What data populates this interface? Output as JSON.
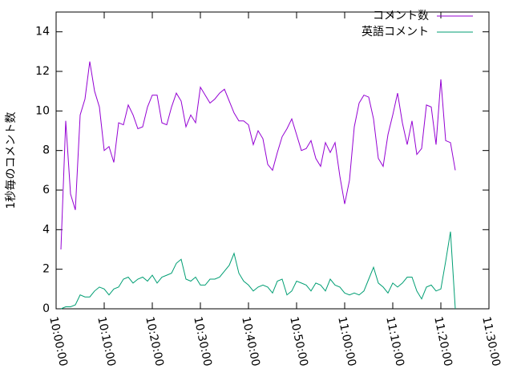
{
  "chart_data": {
    "type": "line",
    "ylabel": "1秒毎のコメント数",
    "x": [
      "10:01:00",
      "10:02:00",
      "10:03:00",
      "10:04:00",
      "10:05:00",
      "10:06:00",
      "10:07:00",
      "10:08:00",
      "10:09:00",
      "10:10:00",
      "10:11:00",
      "10:12:00",
      "10:13:00",
      "10:14:00",
      "10:15:00",
      "10:16:00",
      "10:17:00",
      "10:18:00",
      "10:19:00",
      "10:20:00",
      "10:21:00",
      "10:22:00",
      "10:23:00",
      "10:24:00",
      "10:25:00",
      "10:26:00",
      "10:27:00",
      "10:28:00",
      "10:29:00",
      "10:30:00",
      "10:31:00",
      "10:32:00",
      "10:33:00",
      "10:34:00",
      "10:35:00",
      "10:36:00",
      "10:37:00",
      "10:38:00",
      "10:39:00",
      "10:40:00",
      "10:41:00",
      "10:42:00",
      "10:43:00",
      "10:44:00",
      "10:45:00",
      "10:46:00",
      "10:47:00",
      "10:48:00",
      "10:49:00",
      "10:50:00",
      "10:51:00",
      "10:52:00",
      "10:53:00",
      "10:54:00",
      "10:55:00",
      "10:56:00",
      "10:57:00",
      "10:58:00",
      "10:59:00",
      "11:00:00",
      "11:01:00",
      "11:02:00",
      "11:03:00",
      "11:04:00",
      "11:05:00",
      "11:06:00",
      "11:07:00",
      "11:08:00",
      "11:09:00",
      "11:10:00",
      "11:11:00",
      "11:12:00",
      "11:13:00",
      "11:14:00",
      "11:15:00",
      "11:16:00",
      "11:17:00",
      "11:18:00",
      "11:19:00",
      "11:20:00",
      "11:21:00",
      "11:22:00",
      "11:23:00"
    ],
    "series": [
      {
        "name": "コメント数",
        "color": "#9400d3",
        "values": [
          3.0,
          9.5,
          5.8,
          5.0,
          9.8,
          10.6,
          12.5,
          11.0,
          10.2,
          8.0,
          8.2,
          7.4,
          9.4,
          9.3,
          10.3,
          9.8,
          9.1,
          9.2,
          10.2,
          10.8,
          10.8,
          9.4,
          9.3,
          10.2,
          10.9,
          10.5,
          9.2,
          9.8,
          9.4,
          11.2,
          10.8,
          10.4,
          10.6,
          10.9,
          11.1,
          10.5,
          9.9,
          9.5,
          9.5,
          9.3,
          8.3,
          9.0,
          8.6,
          7.3,
          7.0,
          7.9,
          8.7,
          9.1,
          9.6,
          8.8,
          8.0,
          8.1,
          8.5,
          7.6,
          7.2,
          8.4,
          7.9,
          8.4,
          6.7,
          5.3,
          6.5,
          9.2,
          10.4,
          10.8,
          10.7,
          9.6,
          7.6,
          7.2,
          8.8,
          9.8,
          10.9,
          9.4,
          8.3,
          9.5,
          7.8,
          8.1,
          10.3,
          10.2,
          8.3,
          11.6,
          8.5,
          8.4,
          7.0
        ]
      },
      {
        "name": "英語コメント",
        "color": "#009e73",
        "values": [
          0.0,
          0.1,
          0.1,
          0.2,
          0.7,
          0.6,
          0.6,
          0.9,
          1.1,
          1.0,
          0.7,
          1.0,
          1.1,
          1.5,
          1.6,
          1.3,
          1.5,
          1.6,
          1.4,
          1.7,
          1.3,
          1.6,
          1.7,
          1.8,
          2.3,
          2.5,
          1.5,
          1.4,
          1.6,
          1.2,
          1.2,
          1.5,
          1.5,
          1.6,
          1.9,
          2.2,
          2.8,
          1.8,
          1.4,
          1.2,
          0.9,
          1.1,
          1.2,
          1.1,
          0.8,
          1.4,
          1.5,
          0.7,
          0.9,
          1.4,
          1.3,
          1.2,
          0.9,
          1.3,
          1.2,
          0.9,
          1.5,
          1.2,
          1.1,
          0.8,
          0.7,
          0.8,
          0.7,
          0.9,
          1.5,
          2.1,
          1.3,
          1.1,
          0.8,
          1.3,
          1.1,
          1.3,
          1.6,
          1.6,
          0.9,
          0.5,
          1.1,
          1.2,
          0.9,
          1.0,
          2.4,
          3.9,
          0.0
        ]
      }
    ],
    "xlim": [
      "10:00:00",
      "11:30:00"
    ],
    "xticks": [
      "10:00:00",
      "10:10:00",
      "10:20:00",
      "10:30:00",
      "10:40:00",
      "10:50:00",
      "11:00:00",
      "11:10:00",
      "11:20:00",
      "11:30:00"
    ],
    "ylim": [
      0,
      15
    ],
    "yticks": [
      0,
      2,
      4,
      6,
      8,
      10,
      12,
      14
    ],
    "legend": "top-right"
  }
}
